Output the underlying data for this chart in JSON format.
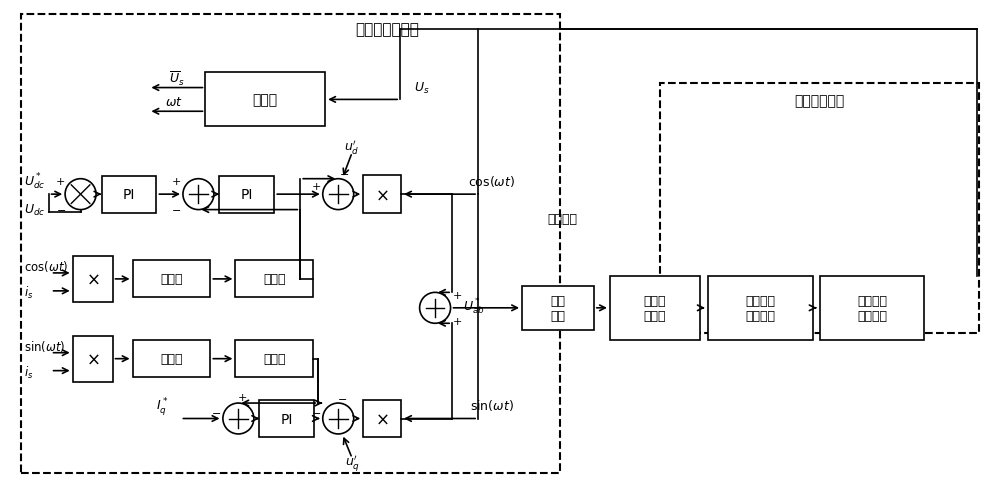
{
  "bg": "#ffffff",
  "lc": "#000000",
  "title_ctrl": "四象限控制算法",
  "title_harm": "谐波抑制算法",
  "title_mod": "调制算法",
  "lbl_pll": "锁相环",
  "lbl_filt": "滤波器",
  "lbl_dec": "解耦项",
  "lbl_pulse": "脉冲\n调制",
  "lbl_conv": "四象限\n变流器",
  "lbl_hext": "谐波电流\n提取模块",
  "lbl_hsup": "谐波电流\n抑制模块"
}
